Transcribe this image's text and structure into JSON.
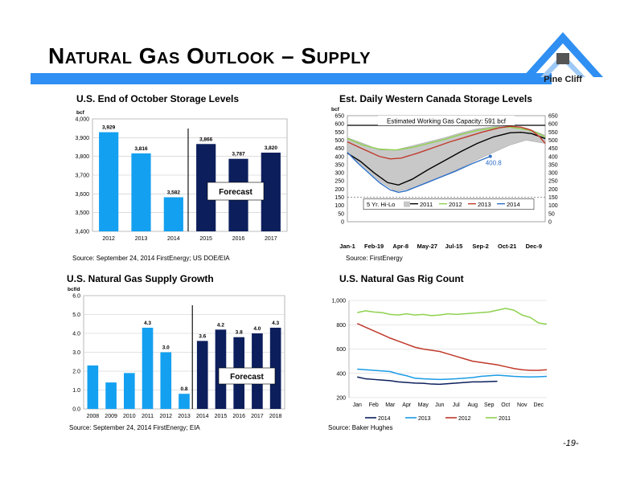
{
  "title": "Natural Gas Outlook – Supply",
  "logo": {
    "text": "Pine Cliff",
    "icon": "pine-cliff-logo-icon"
  },
  "page_number": "-19-",
  "colors": {
    "bar_light": "#14a0f0",
    "bar_dark": "#0c1f5c",
    "title_bar": "#2f8ff2"
  },
  "chart_data": [
    {
      "id": "storage",
      "type": "bar",
      "title": "U.S. End of October Storage Levels",
      "unit": "bcf",
      "categories": [
        "2012",
        "2013",
        "2014",
        "2015",
        "2016",
        "2017"
      ],
      "values": [
        3929,
        3816,
        3582,
        3866,
        3787,
        3820
      ],
      "value_labels": [
        "3,929",
        "3,816",
        "3,582",
        "3,866",
        "3,787",
        "3,820"
      ],
      "forecast_from": 3,
      "forecast_label": "Forecast",
      "ylim": [
        3400,
        4000
      ],
      "yticks": [
        3400,
        3500,
        3600,
        3700,
        3800,
        3900,
        4000
      ],
      "ytick_labels": [
        "3,400",
        "3,500",
        "3,600",
        "3,700",
        "3,800",
        "3,900",
        "4,000"
      ],
      "grid": true,
      "source": "Source:  September 24, 2014 FirstEnergy; US DOE/EIA"
    },
    {
      "id": "canada",
      "type": "line",
      "title": "Est. Daily Western Canada Storage Levels",
      "unit": "bcf",
      "xtick_labels": [
        "Jan-1",
        "Feb-19",
        "Apr-8",
        "May-27",
        "Jul-15",
        "Sep-2",
        "Oct-21",
        "Dec-9"
      ],
      "xtick_days": [
        1,
        50,
        99,
        148,
        197,
        246,
        295,
        344
      ],
      "ylim": [
        0,
        650
      ],
      "yticks": [
        0,
        50,
        100,
        150,
        200,
        250,
        300,
        350,
        400,
        450,
        500,
        550,
        600,
        650
      ],
      "capacity": 591,
      "capacity_label": "Estimated Working Gas Capacity:  591 bcf",
      "low_ref": 150,
      "annotation": {
        "text": "400.8",
        "day": 264,
        "value": 400.8
      },
      "legend_labels": [
        "5 Yr. Hi-Lo",
        "2011",
        "2012",
        "2013",
        "2014"
      ],
      "band": {
        "day": [
          1,
          30,
          60,
          90,
          120,
          150,
          180,
          210,
          240,
          270,
          300,
          330,
          365
        ],
        "high": [
          515,
          480,
          440,
          440,
          465,
          490,
          515,
          545,
          570,
          583,
          588,
          575,
          530
        ],
        "low": [
          420,
          340,
          250,
          185,
          205,
          240,
          285,
          330,
          380,
          425,
          470,
          500,
          480
        ]
      },
      "series": [
        {
          "name": "2011",
          "color": "#000000",
          "day": [
            1,
            25,
            50,
            75,
            95,
            120,
            150,
            180,
            210,
            240,
            270,
            300,
            320,
            340,
            365
          ],
          "values": [
            420,
            370,
            300,
            240,
            225,
            260,
            320,
            375,
            430,
            480,
            520,
            545,
            548,
            540,
            510
          ]
        },
        {
          "name": "2012",
          "color": "#8fd14f",
          "day": [
            1,
            30,
            60,
            90,
            120,
            150,
            180,
            210,
            240,
            270,
            300,
            330,
            350,
            365
          ],
          "values": [
            510,
            470,
            445,
            440,
            455,
            480,
            505,
            535,
            560,
            575,
            580,
            565,
            545,
            520
          ]
        },
        {
          "name": "2013",
          "color": "#c0392b",
          "day": [
            1,
            30,
            60,
            80,
            100,
            130,
            160,
            190,
            220,
            250,
            280,
            300,
            320,
            340,
            355,
            365
          ],
          "values": [
            490,
            445,
            400,
            385,
            390,
            420,
            455,
            490,
            520,
            550,
            575,
            585,
            580,
            560,
            520,
            480
          ]
        },
        {
          "name": "2014",
          "color": "#2e6fc7",
          "day": [
            1,
            20,
            40,
            60,
            80,
            95,
            110,
            140,
            170,
            200,
            230,
            264
          ],
          "values": [
            425,
            360,
            300,
            240,
            195,
            180,
            190,
            230,
            270,
            310,
            355,
            400.8
          ]
        }
      ],
      "source": "Source: FirstEnergy"
    },
    {
      "id": "supply",
      "type": "bar",
      "title": "U.S. Natural Gas Supply Growth",
      "unit": "bcf/d",
      "categories": [
        "2008",
        "2009",
        "2010",
        "2011",
        "2012",
        "2013",
        "2014",
        "2015",
        "2016",
        "2017",
        "2018"
      ],
      "values": [
        2.3,
        1.4,
        1.9,
        4.3,
        3.0,
        0.8,
        3.6,
        4.2,
        3.8,
        4.0,
        4.3
      ],
      "value_labels": [
        "",
        "",
        "",
        "4.3",
        "3.0",
        "0.8",
        "3.6",
        "4.2",
        "3.8",
        "4.0",
        "4.3"
      ],
      "forecast_from": 6,
      "forecast_label": "Forecast",
      "ylim": [
        0,
        6
      ],
      "yticks": [
        0,
        1,
        2,
        3,
        4,
        5,
        6
      ],
      "ytick_labels": [
        "0.0",
        "1.0",
        "2.0",
        "3.0",
        "4.0",
        "5.0",
        "6.0"
      ],
      "grid": true,
      "source": "Source: September 24, 2014 FirstEnergy; EIA"
    },
    {
      "id": "rigs",
      "type": "line",
      "title": "U.S. Natural Gas Rig Count",
      "categories": [
        "Jan",
        "Feb",
        "Mar",
        "Apr",
        "May",
        "Jun",
        "Jul",
        "Aug",
        "Sep",
        "Oct",
        "Nov",
        "Dec"
      ],
      "ylim": [
        200,
        1000
      ],
      "yticks": [
        200,
        400,
        600,
        800,
        1000
      ],
      "ytick_labels": [
        "200",
        "400",
        "600",
        "800",
        "1,000"
      ],
      "grid": true,
      "series": [
        {
          "name": "2014",
          "color": "#0c1f5c",
          "x": [
            0,
            0.5,
            1,
            1.5,
            2,
            2.5,
            3,
            3.5,
            4,
            4.5,
            5,
            5.5,
            6,
            6.5,
            7,
            7.5,
            8,
            8.5
          ],
          "values": [
            370,
            355,
            350,
            345,
            340,
            330,
            325,
            320,
            318,
            312,
            310,
            315,
            320,
            325,
            330,
            330,
            332,
            335
          ]
        },
        {
          "name": "2013",
          "color": "#1a9be6",
          "x": [
            0,
            0.5,
            1,
            1.5,
            2,
            2.5,
            3,
            3.5,
            4,
            4.5,
            5,
            5.5,
            6,
            6.5,
            7,
            7.5,
            8,
            8.5,
            9,
            9.5,
            10,
            10.5,
            11,
            11.5
          ],
          "values": [
            435,
            430,
            425,
            420,
            415,
            395,
            380,
            360,
            355,
            352,
            350,
            352,
            355,
            360,
            365,
            375,
            380,
            385,
            380,
            375,
            372,
            370,
            372,
            375
          ]
        },
        {
          "name": "2012",
          "color": "#c0392b",
          "x": [
            0,
            0.5,
            1,
            1.5,
            2,
            2.5,
            3,
            3.5,
            4,
            4.5,
            5,
            5.5,
            6,
            6.5,
            7,
            7.5,
            8,
            8.5,
            9,
            9.5,
            10,
            10.5,
            11,
            11.5
          ],
          "values": [
            810,
            780,
            750,
            720,
            690,
            665,
            640,
            615,
            600,
            590,
            580,
            560,
            540,
            520,
            500,
            490,
            480,
            470,
            455,
            440,
            430,
            425,
            425,
            430
          ]
        },
        {
          "name": "2011",
          "color": "#8fd14f",
          "x": [
            0,
            0.5,
            1,
            1.5,
            2,
            2.5,
            3,
            3.5,
            4,
            4.5,
            5,
            5.5,
            6,
            6.5,
            7,
            7.5,
            8,
            8.5,
            9,
            9.5,
            10,
            10.5,
            11,
            11.5
          ],
          "values": [
            900,
            915,
            905,
            900,
            885,
            880,
            890,
            880,
            885,
            875,
            880,
            890,
            885,
            890,
            895,
            900,
            905,
            920,
            935,
            920,
            880,
            860,
            815,
            805
          ]
        }
      ],
      "source": "Source: Baker Hughes"
    }
  ]
}
